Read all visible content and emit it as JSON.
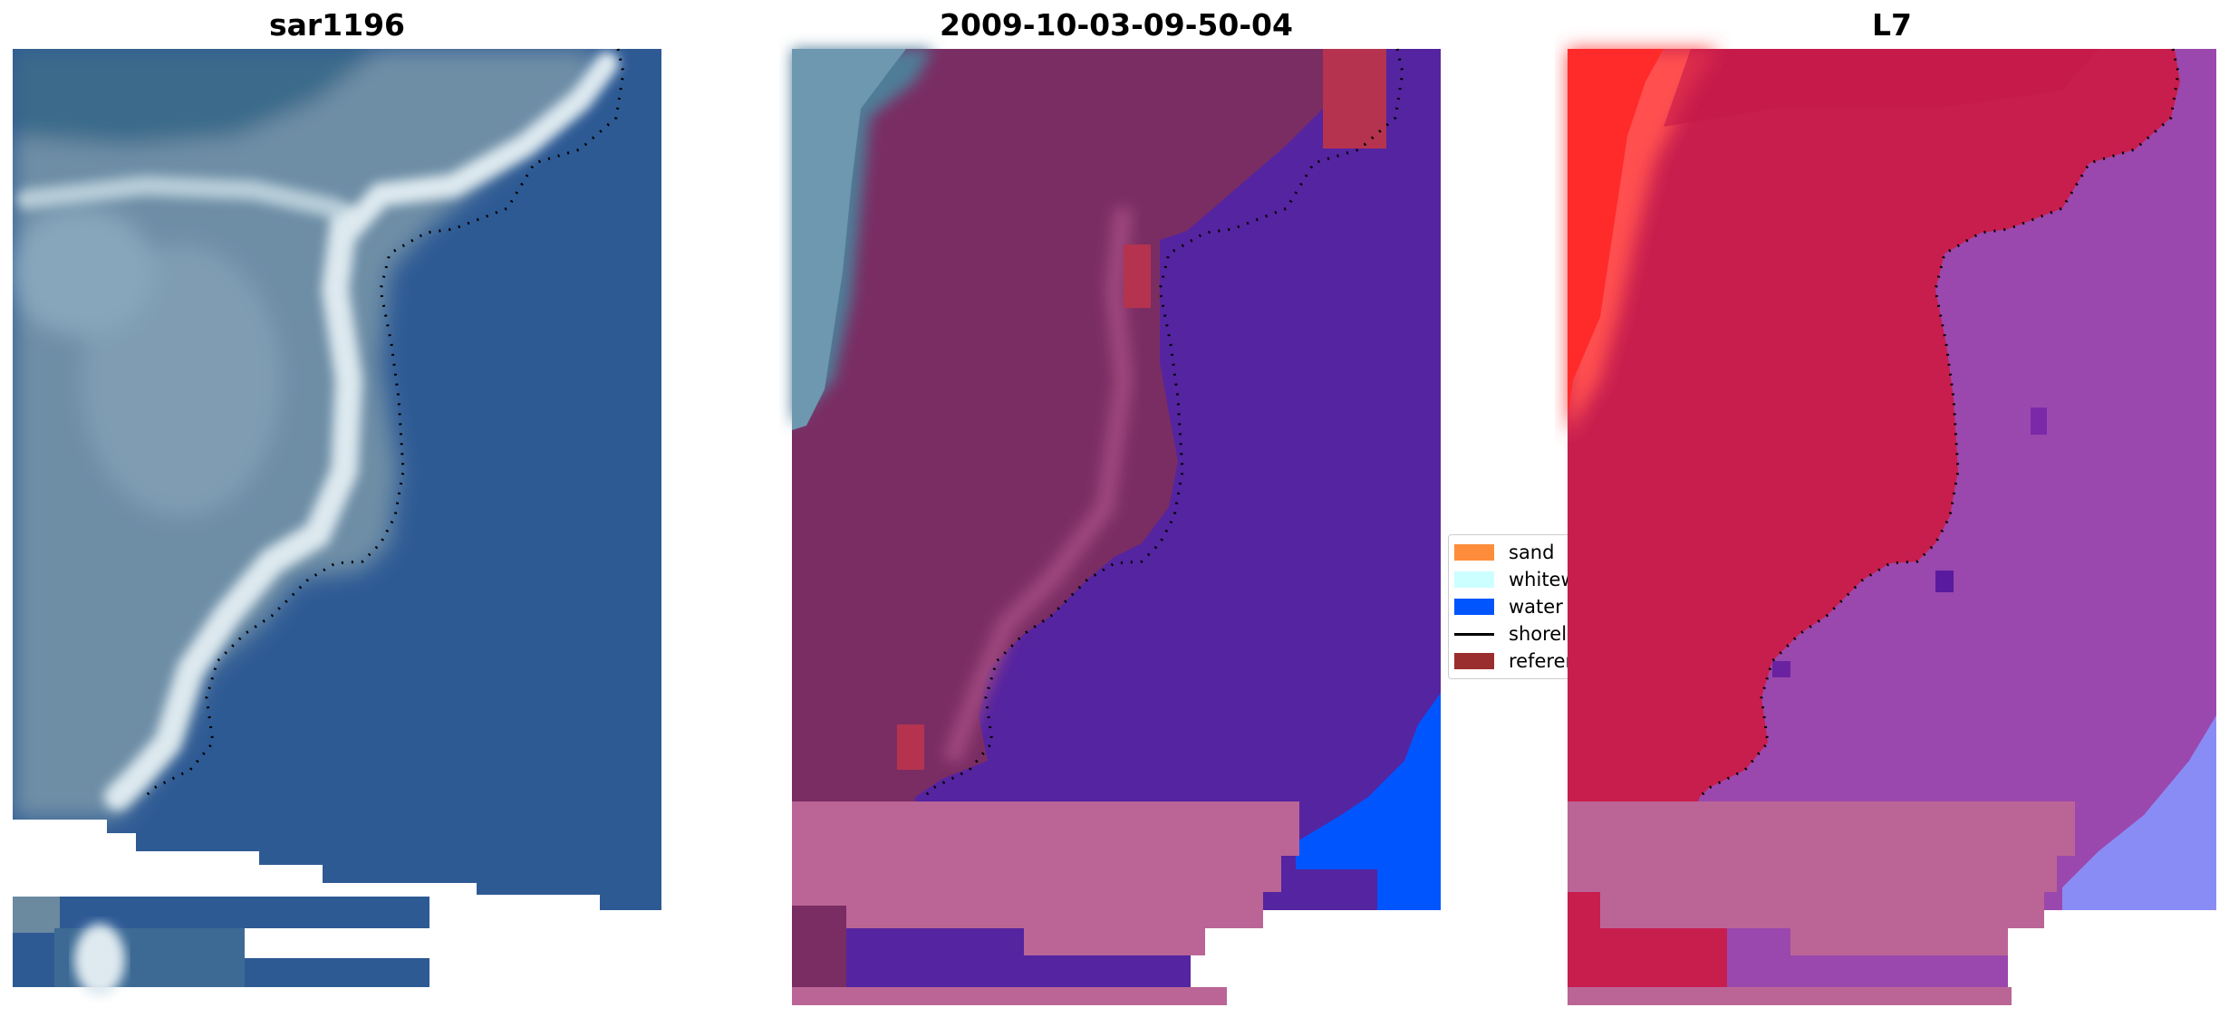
{
  "panels": [
    {
      "title": "sar1196"
    },
    {
      "title": "2009-10-03-09-50-04"
    },
    {
      "title": "L7"
    }
  ],
  "legend": [
    {
      "label": "sand",
      "color": "#ff8c3a"
    },
    {
      "label": "whitewater",
      "color": "#ccffff"
    },
    {
      "label": "water",
      "color": "#0055ff"
    },
    {
      "label": "shoreline",
      "color": "#000000"
    },
    {
      "label": "reference shoreline",
      "color": "#9a2d2d"
    }
  ],
  "colors": {
    "deep_water": "#2e5a94",
    "land_grey": "#6b8aa0",
    "surf_white": "#dfeaf0",
    "water_class": "#5524a0",
    "sand_class": "#7a2d63",
    "nodata_pink": "#bb6596",
    "l7_land": "#c81e4e",
    "l7_water": "#9a48ad",
    "bright_red": "#ff3030",
    "light_blue": "#8a8cf5",
    "water_blue": "#0055ff"
  }
}
